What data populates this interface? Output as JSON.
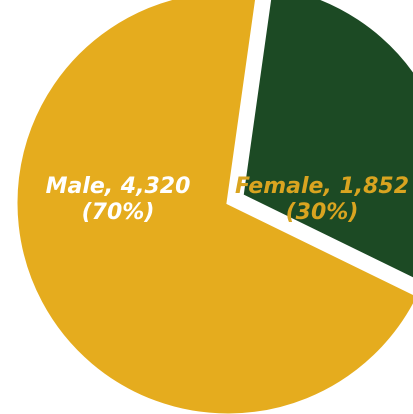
{
  "chart_data": {
    "type": "pie",
    "title": "",
    "slices": [
      {
        "label": "Male, 4,320",
        "pct_label": "(70%)",
        "value": 4320,
        "percent": 70,
        "color": "#E5AC1E",
        "label_color": "#FFFFFF",
        "exploded": false
      },
      {
        "label": "Female, 1,852",
        "pct_label": "(30%)",
        "value": 1852,
        "percent": 30,
        "color": "#1C4A24",
        "label_color": "#D9A420",
        "exploded": true
      }
    ]
  },
  "colors": {
    "background": "#FFFFFF",
    "slice_separator": "#FFFFFF"
  }
}
